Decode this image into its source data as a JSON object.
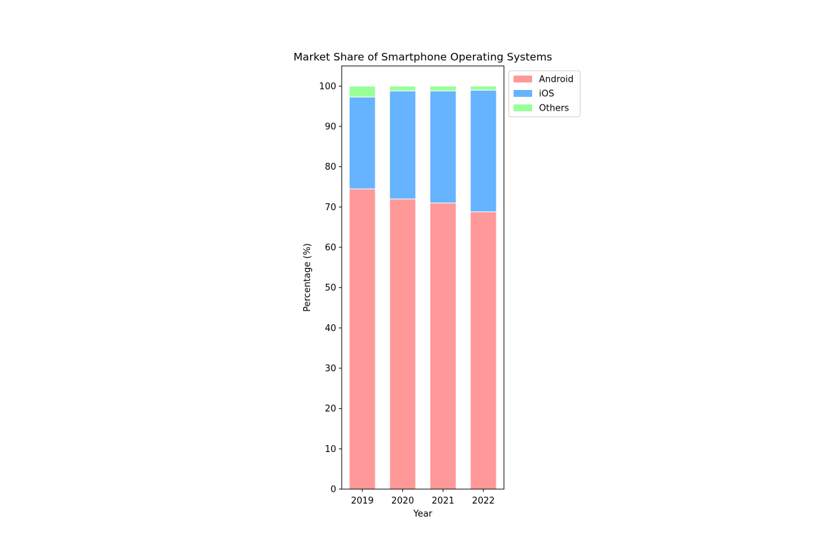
{
  "chart_data": {
    "type": "bar",
    "stacked": true,
    "title": "Market Share of Smartphone Operating Systems",
    "xlabel": "Year",
    "ylabel": "Percentage (%)",
    "categories": [
      "2019",
      "2020",
      "2021",
      "2022"
    ],
    "series": [
      {
        "name": "Android",
        "values": [
          74.5,
          72.0,
          71.0,
          68.8
        ],
        "color": "#ff9999"
      },
      {
        "name": "iOS",
        "values": [
          22.8,
          26.8,
          27.8,
          30.2
        ],
        "color": "#66b3ff"
      },
      {
        "name": "Others",
        "values": [
          2.7,
          1.2,
          1.2,
          1.0
        ],
        "color": "#99ff99"
      }
    ],
    "ylim": [
      0,
      105
    ],
    "yticks": [
      0,
      10,
      20,
      30,
      40,
      50,
      60,
      70,
      80,
      90,
      100
    ],
    "grid": false,
    "legend_position": "outside-top-right",
    "bar_edge_color": "#ffffff"
  }
}
